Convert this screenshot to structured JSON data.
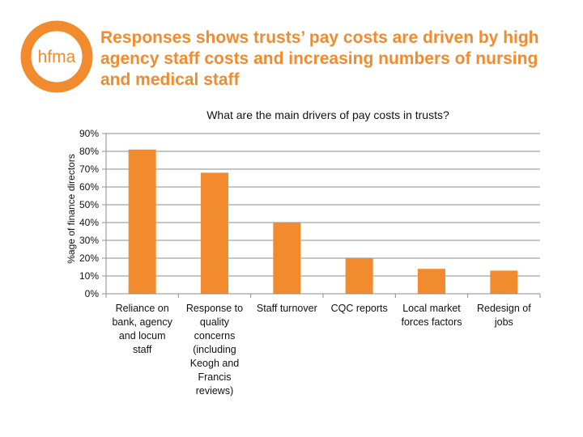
{
  "brand": {
    "logo_text": "hfma",
    "color": "#F28A2E"
  },
  "slide": {
    "title": "Responses shows trusts’ pay costs are driven by high agency staff costs and increasing numbers of nursing and medical staff"
  },
  "chart_data": {
    "type": "bar",
    "title": "What are the main drivers of pay costs in trusts?",
    "ylabel": "%age of finance directors",
    "xlabel": "",
    "categories": [
      "Reliance on bank, agency and locum staff",
      "Response to quality concerns (including Keogh and Francis reviews)",
      "Staff turnover",
      "CQC reports",
      "Local market forces factors",
      "Redesign of jobs"
    ],
    "category_lines": [
      [
        "Reliance on",
        "bank, agency",
        "and locum",
        "staff"
      ],
      [
        "Response to",
        "quality",
        "concerns",
        "(including",
        "Keogh and",
        "Francis",
        "reviews)"
      ],
      [
        "Staff turnover"
      ],
      [
        "CQC reports"
      ],
      [
        "Local market",
        "forces factors"
      ],
      [
        "Redesign of",
        "jobs"
      ]
    ],
    "values": [
      81,
      68,
      40,
      20,
      14,
      13
    ],
    "ylim": [
      0,
      90
    ],
    "yticks": [
      0,
      10,
      20,
      30,
      40,
      50,
      60,
      70,
      80,
      90
    ],
    "ytick_labels": [
      "0%",
      "10%",
      "20%",
      "30%",
      "40%",
      "50%",
      "60%",
      "70%",
      "80%",
      "90%"
    ],
    "bar_color": "#F28A2E",
    "grid": true,
    "legend": "none"
  }
}
